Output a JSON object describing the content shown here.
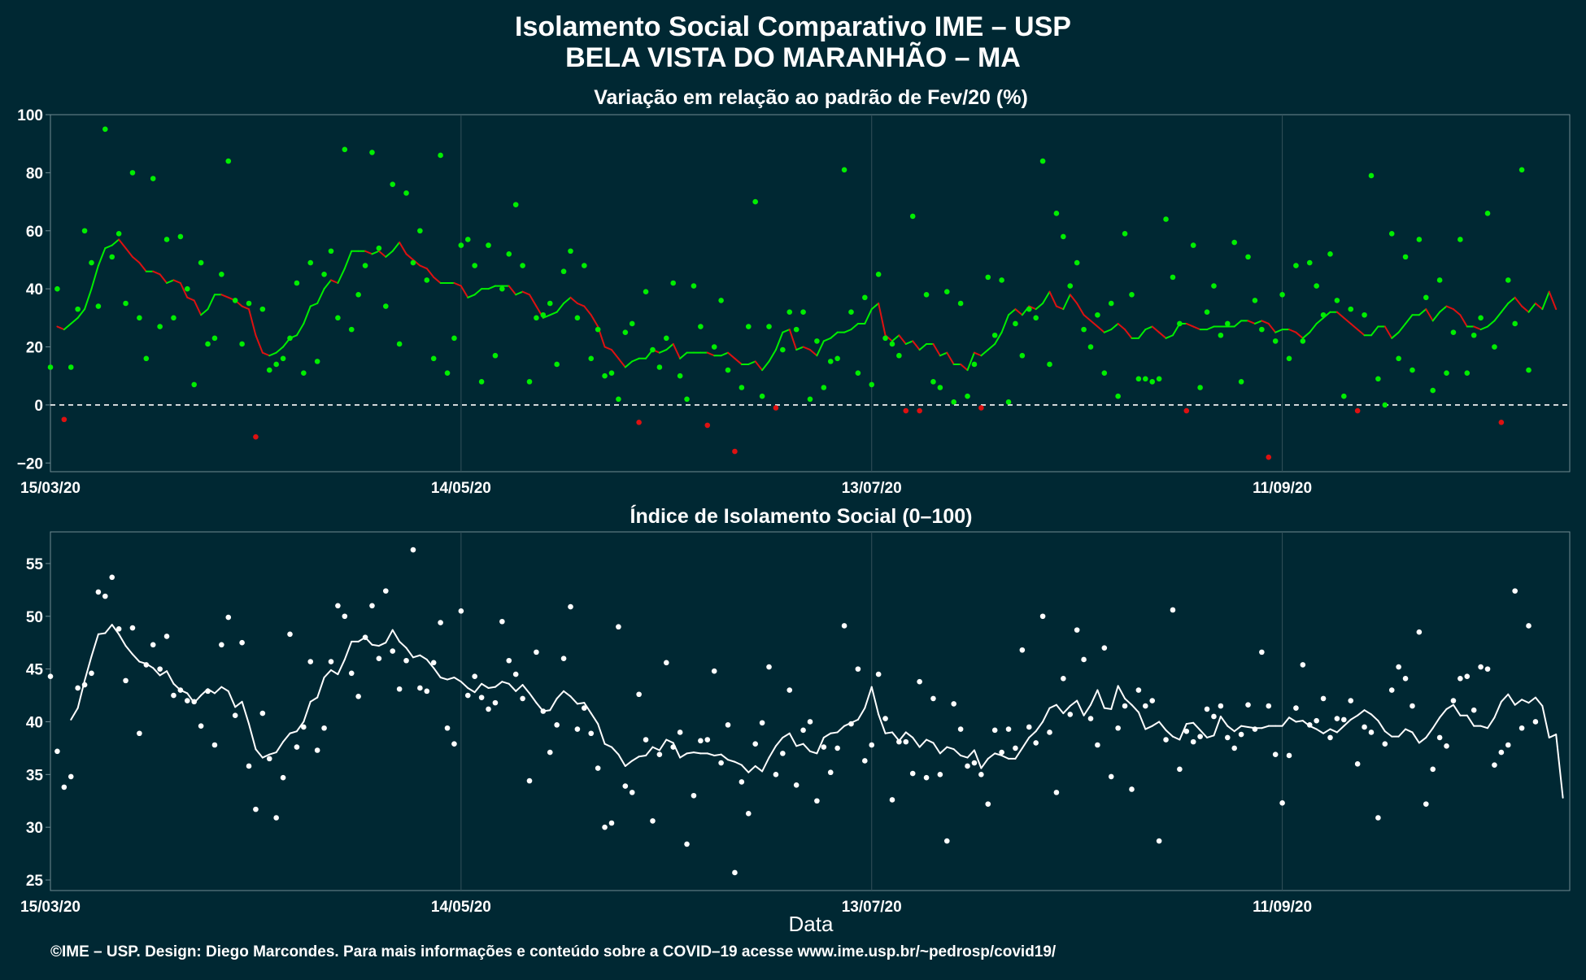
{
  "page": {
    "title_line1": "Isolamento Social Comparativo IME – USP",
    "title_line2": "BELA VISTA DO MARANHÃO – MA",
    "footer": "©IME – USP. Design: Diego Marcondes. Para mais informações e conteúdo sobre a COVID–19 acesse www.ime.usp.br/~pedrosp/covid19/",
    "xlabel": "Data"
  },
  "colors": {
    "background": "#002833",
    "positive": "#00ee00",
    "negative": "#dd1111",
    "index": "#ffffff",
    "grid": "#33505a",
    "zero_line": "#ffffff"
  },
  "chart_data": [
    {
      "type": "scatter",
      "title": "Variação em relação ao padrão de Fev/20 (%)",
      "xlabel": "",
      "ylabel": "",
      "x_start": "15/03/20",
      "x_ticks": [
        "15/03/20",
        "14/05/20",
        "13/07/20",
        "11/09/20"
      ],
      "x_tick_days": [
        0,
        60,
        120,
        180
      ],
      "x_range_days": [
        0,
        222
      ],
      "ylim": [
        -23,
        100
      ],
      "y_ticks": [
        100,
        80,
        60,
        40,
        20,
        0,
        -20
      ],
      "zero_line": true,
      "series": [
        {
          "values": [
            13,
            40,
            -5,
            13,
            33,
            60,
            49,
            34,
            95,
            51,
            59,
            35,
            80,
            30,
            16,
            78,
            27,
            57,
            30,
            58,
            40,
            7,
            49,
            21,
            23,
            45,
            84,
            36,
            21,
            35,
            -11,
            33,
            12,
            14,
            16,
            23,
            42,
            11,
            49,
            15,
            45,
            53,
            30,
            88,
            26,
            38,
            48,
            87,
            54,
            34,
            76,
            21,
            73,
            49,
            60,
            43,
            16,
            86,
            11,
            23,
            55,
            57,
            48,
            8,
            55,
            17,
            40,
            52,
            69,
            48,
            8,
            30,
            31,
            35,
            14,
            46,
            53,
            30,
            48,
            16,
            26,
            10,
            11,
            2,
            25,
            28,
            -6,
            39,
            19,
            13,
            23,
            42,
            10,
            2,
            41,
            27,
            -7,
            20,
            36,
            12,
            -16,
            6,
            27,
            70,
            3,
            27,
            -1,
            19,
            32,
            26,
            32,
            2,
            22,
            6,
            15,
            16,
            81,
            32,
            11,
            37,
            7,
            45,
            23,
            21,
            17,
            -2,
            65,
            -2,
            38,
            8,
            6,
            39,
            1,
            35,
            3,
            14,
            -1,
            44,
            24,
            43,
            1,
            28,
            17,
            33,
            30,
            84,
            14,
            66,
            58,
            41,
            49,
            26,
            20,
            31,
            11,
            35,
            3,
            59,
            38,
            9,
            9,
            8,
            9,
            64,
            44,
            28,
            -2,
            55,
            6,
            32,
            41,
            24,
            28,
            56,
            8,
            51,
            36,
            26,
            -18,
            22,
            38,
            16,
            48,
            22,
            49,
            41,
            31,
            52,
            36,
            3,
            33,
            -2,
            31,
            79,
            9,
            0,
            59,
            16,
            51,
            12,
            57,
            37,
            5,
            43,
            11,
            25,
            57,
            11,
            24,
            30,
            66,
            20,
            -6,
            43,
            28,
            81,
            12
          ]
        },
        {
          "values": [
            null,
            27,
            26,
            28,
            30,
            33,
            40,
            48,
            54,
            55,
            57,
            54,
            51,
            49,
            46,
            46,
            45,
            42,
            43,
            42,
            37,
            36,
            31,
            33,
            38,
            38,
            37,
            36,
            34,
            33,
            24,
            18,
            17,
            18,
            20,
            23,
            24,
            28,
            34,
            35,
            40,
            43,
            42,
            47,
            53,
            53,
            53,
            52,
            53,
            51,
            53,
            56,
            52,
            50,
            48,
            47,
            44,
            42,
            42,
            42,
            41,
            37,
            38,
            40,
            40,
            41,
            41,
            41,
            38,
            39,
            38,
            34,
            30,
            31,
            32,
            35,
            37,
            35,
            34,
            31,
            27,
            20,
            19,
            16,
            13,
            15,
            16,
            16,
            19,
            18,
            19,
            21,
            16,
            18,
            18,
            18,
            18,
            17,
            17,
            18,
            16,
            14,
            14,
            15,
            12,
            15,
            19,
            25,
            26,
            19,
            20,
            19,
            17,
            22,
            23,
            25,
            25,
            26,
            28,
            28,
            33,
            35,
            24,
            22,
            24,
            21,
            22,
            19,
            21,
            21,
            17,
            18,
            14,
            14,
            12,
            18,
            17,
            19,
            21,
            25,
            31,
            33,
            31,
            34,
            33,
            35,
            39,
            34,
            33,
            38,
            35,
            31,
            29,
            27,
            25,
            26,
            28,
            26,
            23,
            23,
            26,
            27,
            25,
            23,
            24,
            28,
            28,
            27,
            26,
            26,
            27,
            27,
            27,
            27,
            29,
            29,
            28,
            29,
            28,
            25,
            26,
            26,
            25,
            23,
            25,
            28,
            30,
            32,
            32,
            30,
            28,
            26,
            24,
            24,
            27,
            27,
            23,
            25,
            28,
            31,
            31,
            33,
            29,
            32,
            34,
            33,
            31,
            27,
            27,
            26,
            27,
            29,
            32,
            35,
            37,
            34,
            32,
            35,
            33,
            39,
            33,
            null
          ]
        }
      ]
    },
    {
      "type": "scatter",
      "title": "Índice de Isolamento Social (0–100)",
      "xlabel": "Data",
      "ylabel": "",
      "x_start": "15/03/20",
      "x_ticks": [
        "15/03/20",
        "14/05/20",
        "13/07/20",
        "11/09/20"
      ],
      "x_tick_days": [
        0,
        60,
        120,
        180
      ],
      "x_range_days": [
        0,
        222
      ],
      "ylim": [
        24,
        58
      ],
      "y_ticks": [
        55,
        50,
        45,
        40,
        35,
        30,
        25
      ],
      "series": [
        {
          "values": [
            44.3,
            37.2,
            33.8,
            34.8,
            43.2,
            43.5,
            44.6,
            52.3,
            51.9,
            53.7,
            48.8,
            43.9,
            48.9,
            38.9,
            45.4,
            47.3,
            45.0,
            48.1,
            42.5,
            43.0,
            42.0,
            41.9,
            39.6,
            42.9,
            37.8,
            47.3,
            49.9,
            40.6,
            47.5,
            35.8,
            31.7,
            40.8,
            36.5,
            30.9,
            34.7,
            48.3,
            37.6,
            39.5,
            45.7,
            37.3,
            39.4,
            45.7,
            51.0,
            50.0,
            44.6,
            42.4,
            48.0,
            51.0,
            46.0,
            52.4,
            46.7,
            43.1,
            45.8,
            56.3,
            43.2,
            42.9,
            45.6,
            49.4,
            39.4,
            37.9,
            50.5,
            42.5,
            44.3,
            42.3,
            41.2,
            41.8,
            49.5,
            45.8,
            44.5,
            42.2,
            34.4,
            46.6,
            41.0,
            37.1,
            39.7,
            46.0,
            50.9,
            39.3,
            41.3,
            38.9,
            35.6,
            30.0,
            30.4,
            49.0,
            33.9,
            33.3,
            42.6,
            38.3,
            30.6,
            36.9,
            45.6,
            37.6,
            39.0,
            28.4,
            33.0,
            38.2,
            38.3,
            44.8,
            36.1,
            39.7,
            25.7,
            34.3,
            31.3,
            37.9,
            39.9,
            45.2,
            35.0,
            37.0,
            43.0,
            34.0,
            39.2,
            40.0,
            32.5,
            37.6,
            35.2,
            37.5,
            49.1,
            39.8,
            45.0,
            36.3,
            37.8,
            44.5,
            40.3,
            32.6,
            38.1,
            38.1,
            35.1,
            43.8,
            34.7,
            42.2,
            35.0,
            28.7,
            41.7,
            39.3,
            35.8,
            36.1,
            35.0,
            32.2,
            39.2,
            37.1,
            39.3,
            37.5,
            46.8,
            39.5,
            38.0,
            50.0,
            39.0,
            33.3,
            44.1,
            40.7,
            48.7,
            45.9,
            40.3,
            37.8,
            47.0,
            34.8,
            39.4,
            41.5,
            33.6,
            43.0,
            41.5,
            42.0,
            28.7,
            38.3,
            50.6,
            35.5,
            39.1,
            38.1,
            38.6,
            41.2,
            40.5,
            41.5,
            38.5,
            37.5,
            38.8,
            41.6,
            39.3,
            46.6,
            41.5,
            36.9,
            32.3,
            36.8,
            41.3,
            45.4,
            39.7,
            40.1,
            42.2,
            38.5,
            40.3,
            40.2,
            42.0,
            36.0,
            39.5,
            39.0,
            30.9,
            37.9,
            43.0,
            45.2,
            44.1,
            41.5,
            48.5,
            32.2,
            35.5,
            38.5,
            37.7,
            42.0,
            44.1,
            44.3,
            41.1,
            45.2,
            45.0,
            35.9,
            37.1,
            37.8,
            52.4,
            39.4,
            49.1,
            40.0
          ]
        },
        {
          "values": [
            null,
            null,
            null,
            40.2,
            41.3,
            43.9,
            46.2,
            48.3,
            48.4,
            49.2,
            48.3,
            47.2,
            46.4,
            45.7,
            45.5,
            45.1,
            44.4,
            44.8,
            43.6,
            43.0,
            42.7,
            41.8,
            42.5,
            43.1,
            42.7,
            43.3,
            42.9,
            41.4,
            41.9,
            39.8,
            37.4,
            36.6,
            36.9,
            37.1,
            38.1,
            38.9,
            39.1,
            40.0,
            41.9,
            42.3,
            44.2,
            44.9,
            44.5,
            45.9,
            47.6,
            47.6,
            48.0,
            47.3,
            47.2,
            47.5,
            48.7,
            47.6,
            47.0,
            46.1,
            46.3,
            45.9,
            45.1,
            44.2,
            44.0,
            44.2,
            43.8,
            43.2,
            42.8,
            43.6,
            43.2,
            43.3,
            43.8,
            43.6,
            42.9,
            43.5,
            42.7,
            41.8,
            41.0,
            41.1,
            42.2,
            42.9,
            42.4,
            41.7,
            41.8,
            40.8,
            39.8,
            37.9,
            37.6,
            36.9,
            35.8,
            36.3,
            36.7,
            36.8,
            37.6,
            37.3,
            38.3,
            38.0,
            36.6,
            37.0,
            37.1,
            37.0,
            37.0,
            36.8,
            36.9,
            36.4,
            36.2,
            35.9,
            35.2,
            35.8,
            35.3,
            36.6,
            37.7,
            38.5,
            38.9,
            37.7,
            37.9,
            37.2,
            37.0,
            38.5,
            38.9,
            39.0,
            39.6,
            39.9,
            40.2,
            41.3,
            43.3,
            40.7,
            38.9,
            39.0,
            38.2,
            39.0,
            38.5,
            37.6,
            38.3,
            38.0,
            37.0,
            37.6,
            37.4,
            36.8,
            36.6,
            37.3,
            35.6,
            36.5,
            37.0,
            36.8,
            36.5,
            36.5,
            37.5,
            38.5,
            39.1,
            40.0,
            41.3,
            41.6,
            40.8,
            41.5,
            42.0,
            40.6,
            41.6,
            43.0,
            41.3,
            41.2,
            43.4,
            42.2,
            41.6,
            40.9,
            39.3,
            39.6,
            40.0,
            39.2,
            38.6,
            38.3,
            39.8,
            39.9,
            39.2,
            38.5,
            38.7,
            40.5,
            39.6,
            39.1,
            39.6,
            39.5,
            39.4,
            39.4,
            39.6,
            39.6,
            39.6,
            40.4,
            40.0,
            40.1,
            39.6,
            39.3,
            38.9,
            39.3,
            39.0,
            39.6,
            40.2,
            40.6,
            41.1,
            40.7,
            40.1,
            39.1,
            38.6,
            38.6,
            39.3,
            39.0,
            38.0,
            38.5,
            39.4,
            40.4,
            41.2,
            41.6,
            40.6,
            40.6,
            39.6,
            39.6,
            39.4,
            40.4,
            41.9,
            42.6,
            41.6,
            42.1,
            41.8,
            42.3,
            41.5,
            38.5,
            38.8,
            32.8
          ]
        }
      ]
    }
  ]
}
